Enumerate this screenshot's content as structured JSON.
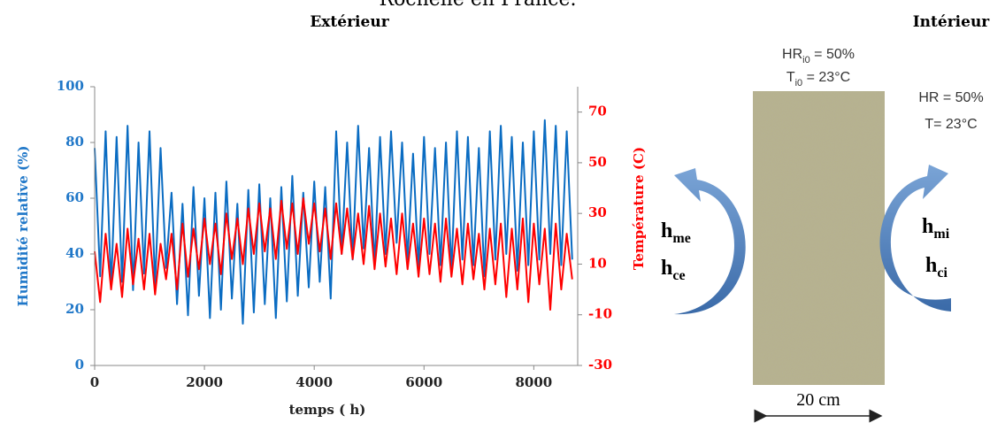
{
  "figure": {
    "caption": "Rochelle en France.",
    "exterior_label": "Extérieur",
    "interior_label": "Intérieur",
    "initial_humidity": {
      "base": "HR",
      "sub": "i0",
      "rest": " = 50%"
    },
    "initial_temperature": {
      "base": "T",
      "sub": "i0",
      "rest": " = 23°C"
    },
    "interior_humidity": "HR = 50%",
    "interior_temperature": "T= 23°C",
    "h_me": {
      "base": "h",
      "sub": "me"
    },
    "h_ce": {
      "base": "h",
      "sub": "ce"
    },
    "h_mi": {
      "base": "h",
      "sub": "mi"
    },
    "h_ci": {
      "base": "h",
      "sub": "ci"
    },
    "thickness": "20 cm"
  },
  "chart_data": {
    "type": "line",
    "x_label": "temps ( h)",
    "y_label": "Humidité relative (%)",
    "y2_label": "Température (C)",
    "x": [
      0,
      100,
      200,
      300,
      400,
      500,
      600,
      700,
      800,
      900,
      1000,
      1100,
      1200,
      1300,
      1400,
      1500,
      1600,
      1700,
      1800,
      1900,
      2000,
      2100,
      2200,
      2300,
      2400,
      2500,
      2600,
      2700,
      2800,
      2900,
      3000,
      3100,
      3200,
      3300,
      3400,
      3500,
      3600,
      3700,
      3800,
      3900,
      4000,
      4100,
      4200,
      4300,
      4400,
      4500,
      4600,
      4700,
      4800,
      4900,
      5000,
      5100,
      5200,
      5300,
      5400,
      5500,
      5600,
      5700,
      5800,
      5900,
      6000,
      6100,
      6200,
      6300,
      6400,
      6500,
      6600,
      6700,
      6800,
      6900,
      7000,
      7100,
      7200,
      7300,
      7400,
      7500,
      7600,
      7700,
      7800,
      7900,
      8000,
      8100,
      8200,
      8300,
      8400,
      8500,
      8600,
      8700
    ],
    "series": [
      {
        "name": "Humidité relative",
        "color": "#0a6cc2",
        "axis": "y",
        "values": [
          78,
          32,
          84,
          28,
          82,
          30,
          86,
          27,
          80,
          33,
          84,
          29,
          78,
          35,
          62,
          22,
          58,
          18,
          64,
          25,
          60,
          17,
          62,
          20,
          66,
          24,
          58,
          15,
          63,
          19,
          65,
          22,
          60,
          17,
          64,
          23,
          68,
          25,
          62,
          28,
          66,
          30,
          64,
          24,
          84,
          40,
          80,
          38,
          86,
          42,
          78,
          36,
          82,
          40,
          84,
          44,
          80,
          38,
          76,
          35,
          82,
          40,
          78,
          36,
          80,
          34,
          84,
          38,
          82,
          36,
          78,
          32,
          84,
          38,
          86,
          40,
          82,
          34,
          80,
          36,
          84,
          38,
          88,
          40,
          86,
          36,
          84,
          38
        ]
      },
      {
        "name": "Température",
        "color": "#ff0000",
        "axis": "y2",
        "values": [
          15,
          -5,
          22,
          0,
          18,
          -3,
          24,
          2,
          20,
          0,
          22,
          -2,
          18,
          4,
          22,
          0,
          26,
          5,
          24,
          8,
          28,
          10,
          26,
          6,
          30,
          12,
          28,
          10,
          32,
          14,
          34,
          15,
          32,
          12,
          35,
          16,
          34,
          14,
          36,
          18,
          34,
          15,
          32,
          12,
          34,
          14,
          32,
          12,
          30,
          10,
          33,
          8,
          30,
          9,
          28,
          6,
          30,
          8,
          26,
          5,
          28,
          6,
          26,
          3,
          28,
          5,
          24,
          2,
          26,
          4,
          22,
          0,
          24,
          2,
          26,
          -3,
          24,
          0,
          28,
          -5,
          26,
          2,
          24,
          -8,
          26,
          0,
          22,
          4
        ]
      }
    ],
    "xlim": [
      0,
      8800
    ],
    "xticks": [
      0,
      2000,
      4000,
      6000,
      8000
    ],
    "ylim": [
      0,
      100
    ],
    "yticks": [
      0,
      20,
      40,
      60,
      80,
      100
    ],
    "y2lim": [
      -30,
      80
    ],
    "y2ticks": [
      -30,
      -10,
      10,
      30,
      50,
      70
    ],
    "y_color": "#1f77c8",
    "y2_color": "#ff0000"
  }
}
